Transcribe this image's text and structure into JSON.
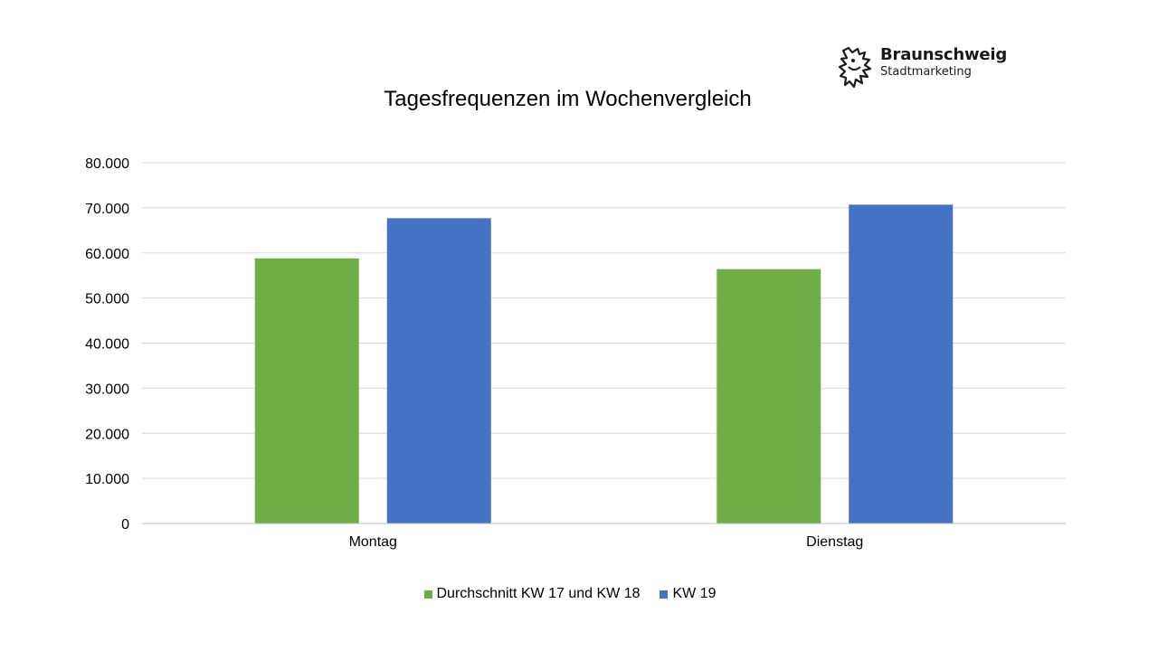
{
  "logo": {
    "brand": "Braunschweig",
    "sub": "Stadtmarketing",
    "icon": "lion-icon"
  },
  "chart_data": {
    "type": "bar",
    "title": "Tagesfrequenzen im Wochenvergleich",
    "categories": [
      "Montag",
      "Dienstag"
    ],
    "series": [
      {
        "name": "Durchschnitt KW 17 und KW 18",
        "values": [
          58800,
          56400
        ],
        "color": "#70ad47"
      },
      {
        "name": "KW 19",
        "values": [
          67700,
          70700
        ],
        "color": "#4472c4"
      }
    ],
    "ylim": [
      0,
      80000
    ],
    "yticks": [
      0,
      10000,
      20000,
      30000,
      40000,
      50000,
      60000,
      70000,
      80000
    ],
    "ytick_labels": [
      "0",
      "10.000",
      "20.000",
      "30.000",
      "40.000",
      "50.000",
      "60.000",
      "70.000",
      "80.000"
    ],
    "grid": true,
    "legend_position": "bottom",
    "grid_color": "#d9d9d9"
  }
}
